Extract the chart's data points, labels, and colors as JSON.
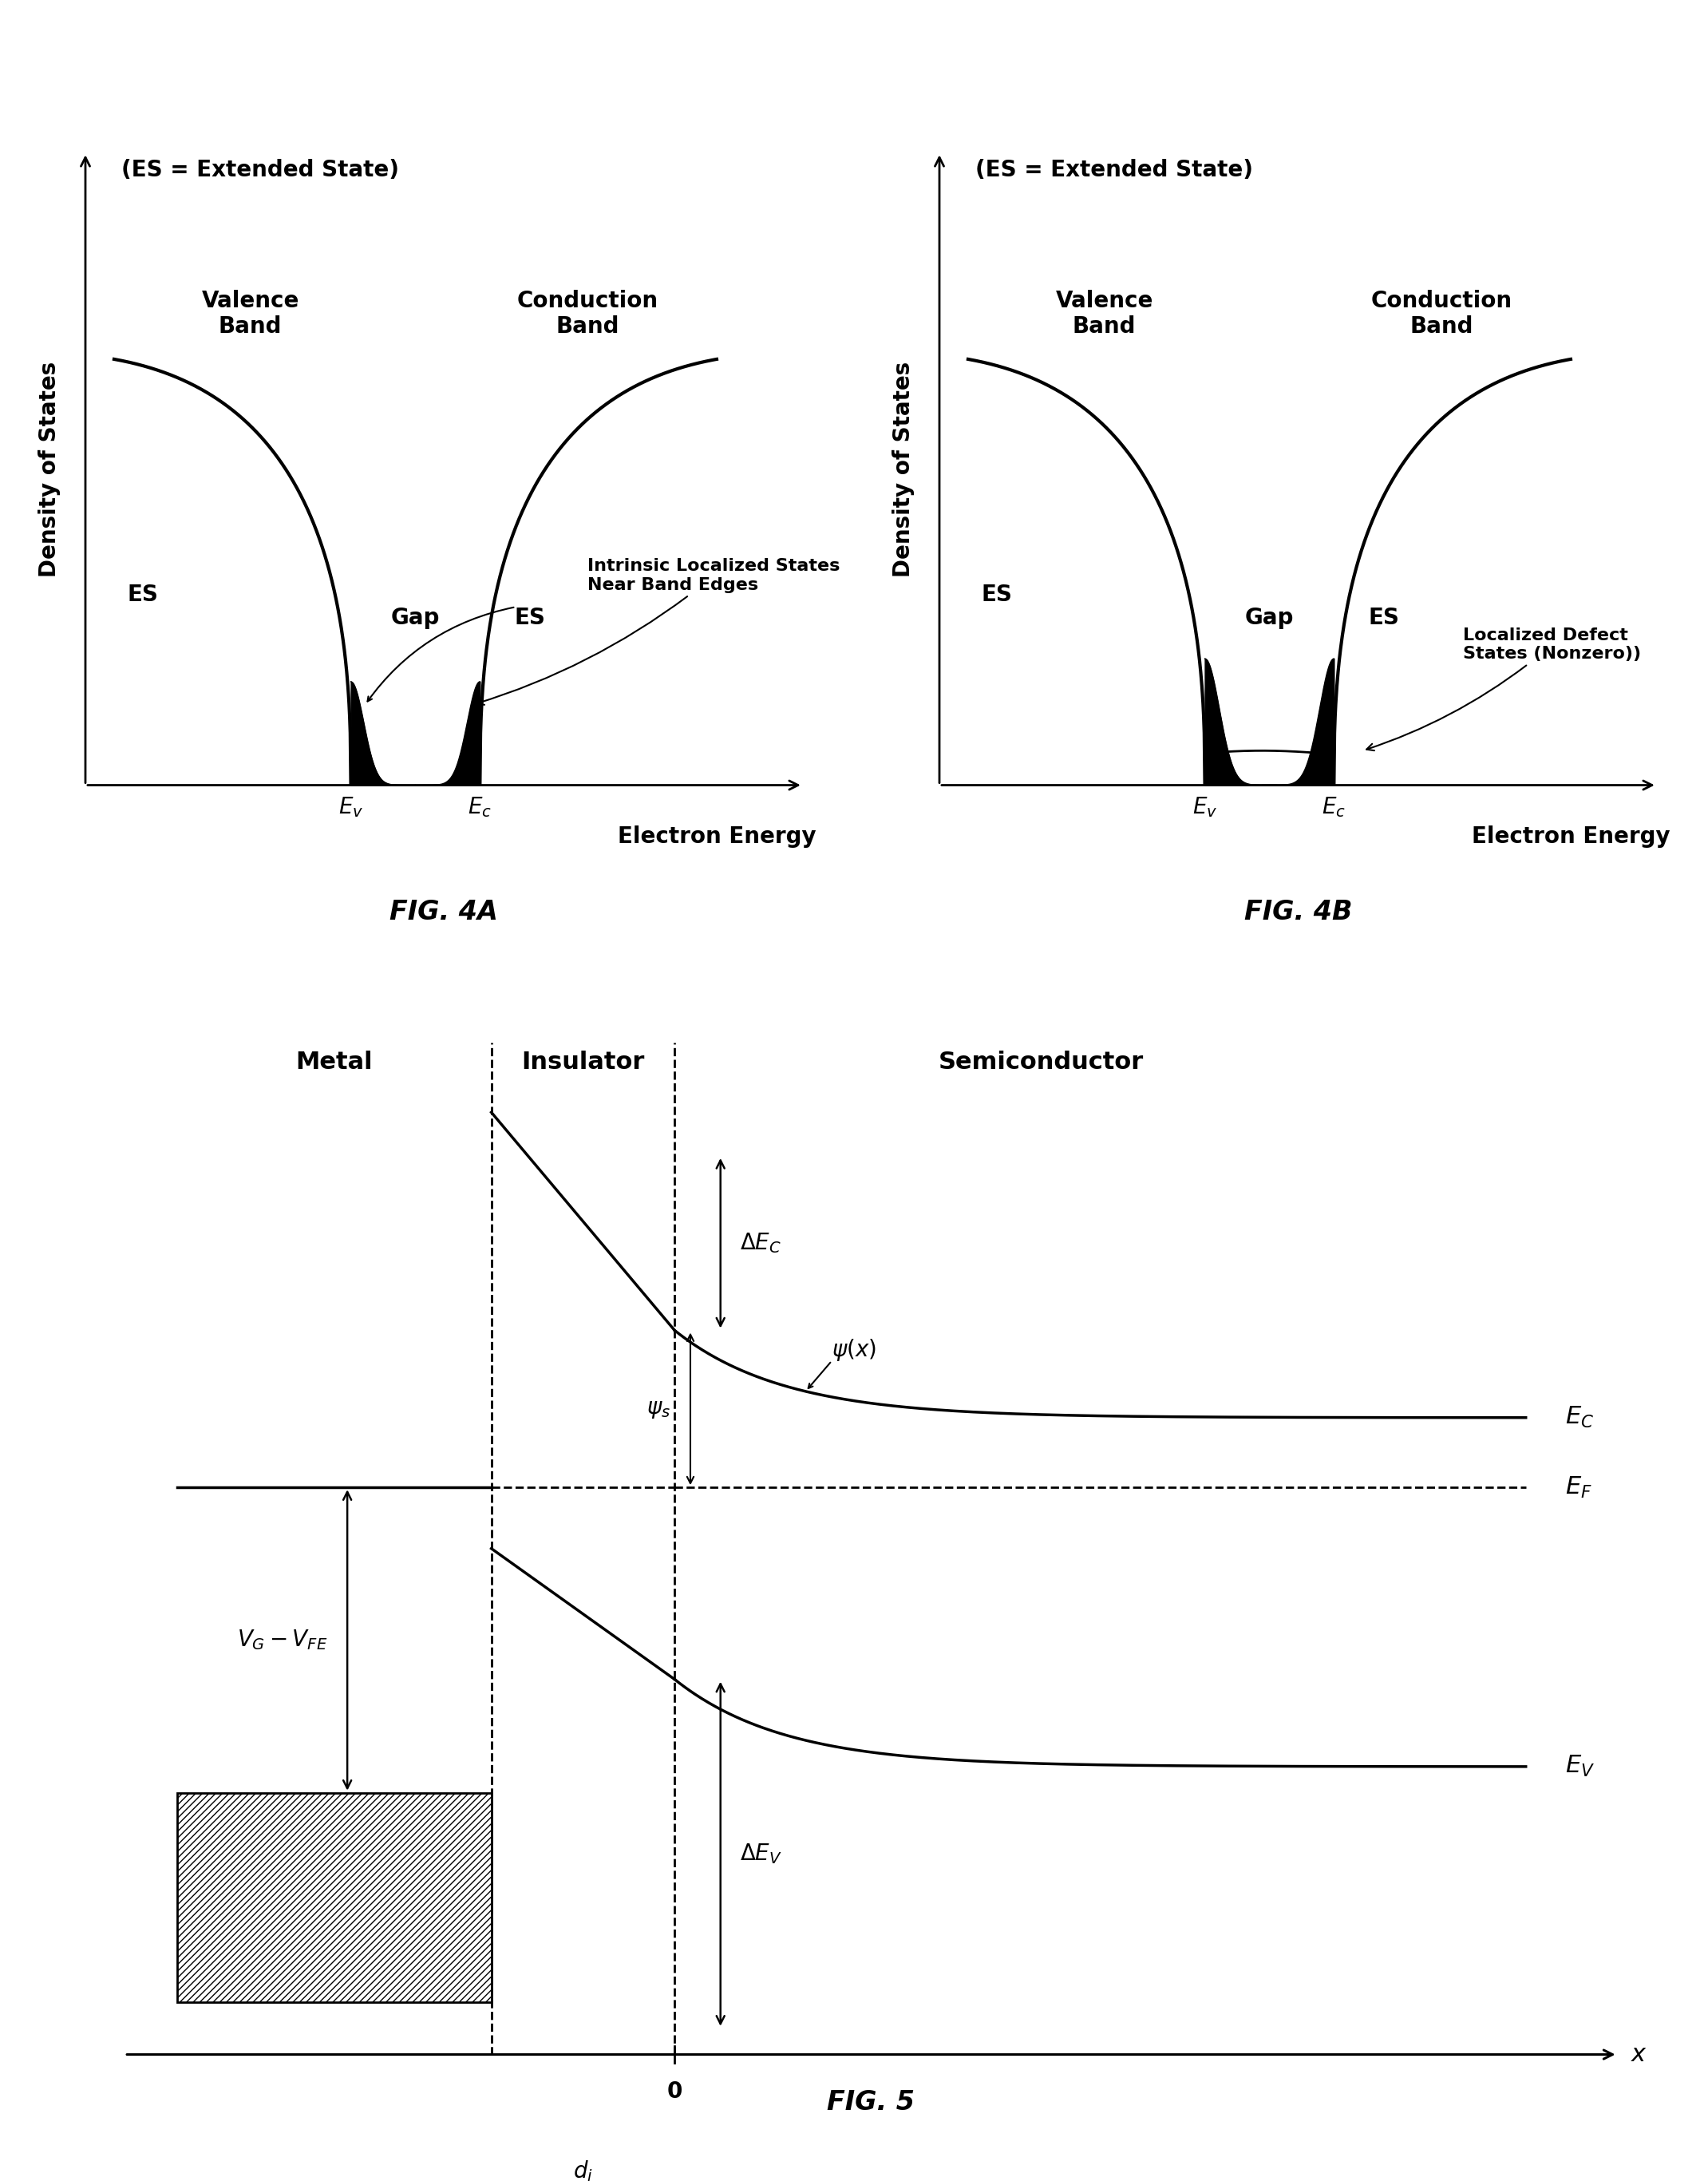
{
  "bg_color": "#ffffff",
  "fig4a_title": "(ES = Extended State)",
  "fig4a_label": "FIG. 4A",
  "fig4a_xlabel": "Electron Energy",
  "fig4a_ylabel": "Density of States",
  "fig4a_valence_label": "Valence\nBand",
  "fig4a_conduction_label": "Conduction\nBand",
  "fig4a_es_left": "ES",
  "fig4a_gap": "Gap",
  "fig4a_es_right": "ES",
  "fig4a_annotation": "Intrinsic Localized States\nNear Band Edges",
  "fig4b_title": "(ES = Extended State)",
  "fig4b_label": "FIG. 4B",
  "fig4b_xlabel": "Electron Energy",
  "fig4b_ylabel": "Density of States",
  "fig4b_valence_label": "Valence\nBand",
  "fig4b_conduction_label": "Conduction\nBand",
  "fig4b_es_left": "ES",
  "fig4b_gap": "Gap",
  "fig4b_es_right": "ES",
  "fig4b_annotation": "Localized Defect\nStates (Nonzero))",
  "fig5_label": "FIG. 5",
  "fig5_metal": "Metal",
  "fig5_insulator": "Insulator",
  "fig5_semiconductor": "Semiconductor",
  "fig5_x_label": "x",
  "fig5_di": "d$_i$",
  "lw_band": 3.0,
  "lw_axis": 2.0,
  "fontsize_label": 22,
  "fontsize_text": 20,
  "fontsize_figlabel": 24
}
